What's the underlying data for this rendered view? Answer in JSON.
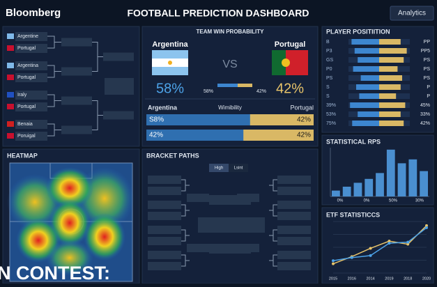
{
  "header": {
    "brand": "Bloomberg",
    "title": "FOOTBALL PREDICTION DASHBOARD",
    "button": "Analytics"
  },
  "bracket": {
    "matches": [
      [
        "Argentine",
        "Portugal"
      ],
      [
        "Argentina",
        "Portugal"
      ],
      [
        "Iraly",
        "Portugal"
      ],
      [
        "Benaia",
        "Poruigal"
      ]
    ]
  },
  "win_probability": {
    "title": "TEAM WIN PROBABILITY",
    "team_a": "Argentina",
    "team_b": "Portugal",
    "vs": "VS",
    "pct_a": "58%",
    "pct_b": "42%",
    "bar_a": "58%",
    "bar_b": "42%",
    "share_a": 58,
    "table": {
      "header": [
        "Argentina",
        "Wimibility",
        "Portugal"
      ],
      "rows": [
        {
          "left": "S8%",
          "right": "42%",
          "share": 62
        },
        {
          "left": "42%",
          "right": "42%",
          "share": 58
        }
      ]
    }
  },
  "player_position": {
    "title": "PLAYER POSITIITION",
    "rows": [
      {
        "left": "B",
        "right": "PP",
        "blue": 90,
        "gold": 70
      },
      {
        "left": "P3",
        "right": "PP5",
        "blue": 80,
        "gold": 90
      },
      {
        "left": "GS",
        "right": "PS",
        "blue": 70,
        "gold": 80
      },
      {
        "left": "P0",
        "right": "PS",
        "blue": 85,
        "gold": 60
      },
      {
        "left": "PS",
        "right": "PS",
        "blue": 60,
        "gold": 75
      },
      {
        "left": "S",
        "right": "P",
        "blue": 75,
        "gold": 70
      },
      {
        "left": "S",
        "right": "P",
        "blue": 65,
        "gold": 55
      },
      {
        "left": "39%",
        "right": "45%",
        "blue": 95,
        "gold": 85
      },
      {
        "left": "53%",
        "right": "33%",
        "blue": 70,
        "gold": 70
      },
      {
        "left": "75%",
        "right": "42%",
        "blue": 88,
        "gold": 80
      }
    ]
  },
  "heatmap": {
    "title": "HEATMAP"
  },
  "bracket_paths": {
    "title": "BRACKET PATHS",
    "toggle": [
      "High",
      "Lsint"
    ]
  },
  "rps": {
    "title": "STATISTICAL RPS",
    "values": [
      3,
      5,
      7,
      9,
      12,
      24,
      17,
      19,
      13
    ],
    "ylim": [
      0,
      25
    ],
    "xlabels": [
      "0%",
      "0%",
      "50%",
      "30%"
    ],
    "color": "#4a8fd0"
  },
  "etf": {
    "title": "ETF STATISTICCS",
    "x": [
      "2015",
      "2016",
      "2014",
      "2019",
      "2018",
      "2020"
    ],
    "ylim": [
      0,
      100
    ],
    "series": [
      {
        "color": "#e8c46a",
        "values": [
          18,
          32,
          48,
          62,
          56,
          92
        ]
      },
      {
        "color": "#4da3e8",
        "values": [
          24,
          30,
          34,
          58,
          60,
          88
        ]
      }
    ]
  },
  "footer": {
    "text": "N CONTEST:"
  }
}
